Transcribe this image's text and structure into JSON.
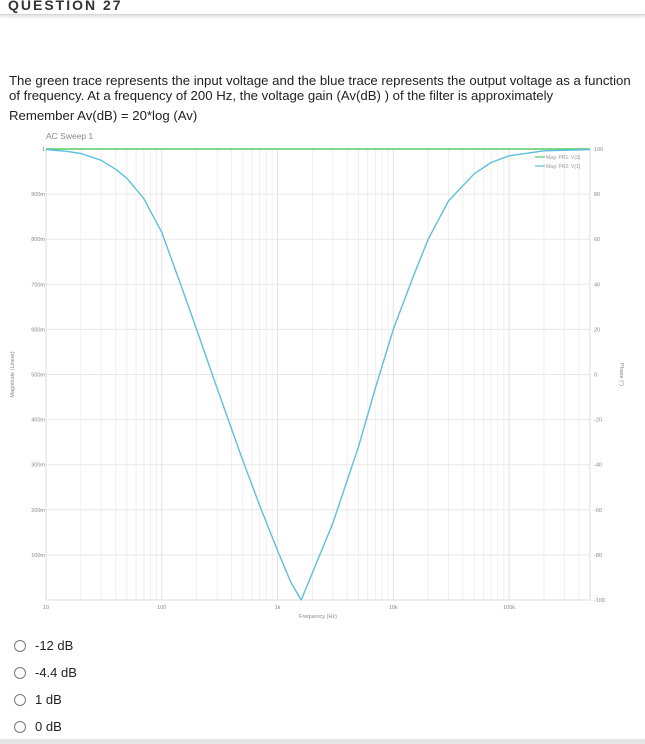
{
  "question": {
    "title": "QUESTION 27",
    "text": "The green trace represents the input voltage and the blue trace represents the output voltage as a function of frequency. At a frequency of 200 Hz, the voltage gain (Av(dB) ) of the filter is approximately",
    "formula": "Remember Av(dB) = 20*log (Av)"
  },
  "choices": [
    "-12 dB",
    "-4.4 dB",
    "1 dB",
    "0 dB"
  ],
  "chart_data": {
    "type": "line",
    "title": "AC Sweep 1",
    "xlabel": "Frequency (Hz)",
    "ylabel": "Magnitude (Linear)",
    "y2label": "Phase (°)",
    "xscale": "log",
    "xlim": [
      10,
      500000
    ],
    "ylim": [
      0,
      1
    ],
    "y2lim": [
      -100,
      100
    ],
    "grid": true,
    "legend_position": "top-right",
    "x_ticks": [
      10,
      100,
      1000,
      10000,
      100000
    ],
    "x_tick_labels": [
      "10",
      "100",
      "1k",
      "10k",
      "100k"
    ],
    "y_ticks": [
      1,
      0.9,
      0.8,
      0.7,
      0.6,
      0.5,
      0.4,
      0.3,
      0.2,
      0.1
    ],
    "y_tick_labels": [
      "1",
      "900m",
      "800m",
      "700m",
      "600m",
      "500m",
      "400m",
      "300m",
      "200m",
      "100m"
    ],
    "y2_ticks": [
      100,
      80,
      60,
      40,
      20,
      0,
      -20,
      -40,
      -60,
      -80,
      -100
    ],
    "y2_tick_labels": [
      "100",
      "80",
      "60",
      "40",
      "20",
      "0",
      "-20",
      "-40",
      "-60",
      "-80",
      "-100"
    ],
    "series": [
      {
        "name": "Mag: PR1: V(3)",
        "color": "#55cc66",
        "x": [
          10,
          500000
        ],
        "y": [
          1.0,
          1.0
        ]
      },
      {
        "name": "Mag: PR2: V(1)",
        "color": "#5bc0de",
        "x": [
          10,
          15,
          20,
          30,
          40,
          50,
          70,
          100,
          150,
          200,
          300,
          500,
          700,
          1000,
          1300,
          1600,
          2000,
          3000,
          5000,
          7000,
          10000,
          15000,
          20000,
          30000,
          50000,
          70000,
          100000,
          200000,
          500000
        ],
        "y": [
          0.999,
          0.995,
          0.99,
          0.975,
          0.955,
          0.935,
          0.89,
          0.815,
          0.69,
          0.6,
          0.47,
          0.31,
          0.21,
          0.11,
          0.04,
          0.0,
          0.06,
          0.17,
          0.34,
          0.47,
          0.6,
          0.72,
          0.8,
          0.885,
          0.945,
          0.97,
          0.985,
          0.996,
          0.999
        ]
      }
    ]
  }
}
